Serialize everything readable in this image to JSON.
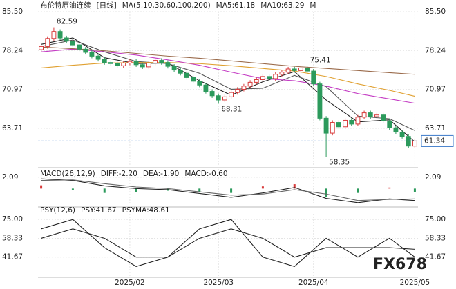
{
  "chart_data": [
    {
      "type": "candlestick",
      "grid": true,
      "up_color": "#d83a3a",
      "down_color": "#2c9a5c",
      "legend": [
        {
          "text": "布伦特原油连续",
          "color": "#222"
        },
        {
          "text": "[日线]",
          "color": "#d83a3a"
        },
        {
          "text": "MA(5,10,30,60,100,200)",
          "color": "#222"
        },
        {
          "text": "MA5:61.18",
          "color": "#222"
        },
        {
          "text": "MA10:63.29",
          "color": "#222"
        },
        {
          "text": "M",
          "color": "#c43cc4"
        }
      ],
      "xlim": [
        -0.5,
        59.5
      ],
      "xticks": [
        {
          "value": 14,
          "label": "2025/02"
        },
        {
          "value": 28,
          "label": "2025/03"
        },
        {
          "value": 43,
          "label": "2025/04"
        },
        {
          "value": 59,
          "label": "2025/05"
        }
      ],
      "ylim": [
        56.75,
        85.5
      ],
      "yticks": [
        {
          "value": 85.5,
          "label": "85.50"
        },
        78.24,
        70.97,
        63.71
      ],
      "open": [
        78.4,
        79.0,
        80.5,
        81.8,
        80.6,
        80.0,
        79.3,
        78.5,
        77.9,
        77.2,
        76.6,
        76.0,
        75.8,
        75.4,
        75.9,
        76.2,
        75.6,
        75.2,
        75.9,
        76.4,
        76.0,
        75.3,
        74.6,
        74.0,
        73.2,
        72.5,
        71.8,
        70.6,
        69.8,
        69.0,
        69.6,
        70.4,
        71.0,
        71.6,
        72.3,
        72.8,
        73.4,
        73.0,
        73.8,
        74.2,
        74.8,
        74.5,
        75.0,
        74.4,
        72.0,
        65.6,
        62.8,
        64.8,
        64.0,
        65.2,
        64.5,
        65.8,
        66.6,
        65.9,
        66.2,
        65.1,
        63.8,
        63.0,
        62.2,
        60.4
      ],
      "high": [
        79.4,
        80.9,
        82.59,
        82.2,
        81.0,
        80.4,
        79.7,
        78.9,
        78.3,
        77.6,
        77.0,
        76.4,
        76.2,
        76.3,
        76.6,
        76.6,
        76.0,
        76.3,
        76.8,
        76.8,
        76.4,
        75.7,
        75.0,
        74.4,
        73.6,
        72.9,
        72.2,
        71.0,
        70.2,
        70.0,
        70.8,
        71.4,
        72.0,
        72.7,
        73.2,
        73.8,
        73.8,
        74.2,
        74.6,
        75.2,
        75.2,
        75.3,
        75.41,
        74.8,
        72.4,
        66.0,
        65.2,
        65.2,
        65.6,
        65.6,
        66.2,
        67.0,
        67.0,
        66.6,
        66.6,
        65.5,
        64.2,
        63.4,
        62.6,
        61.8
      ],
      "low": [
        78.0,
        78.6,
        80.1,
        80.2,
        79.6,
        78.9,
        78.1,
        77.5,
        76.8,
        76.2,
        75.6,
        75.4,
        75.0,
        75.0,
        75.5,
        75.2,
        74.8,
        74.8,
        75.5,
        75.6,
        74.9,
        74.2,
        73.6,
        72.8,
        72.1,
        71.4,
        70.2,
        69.4,
        68.31,
        68.6,
        69.2,
        70.0,
        70.6,
        71.2,
        71.9,
        72.4,
        72.6,
        72.6,
        73.4,
        73.8,
        74.1,
        74.1,
        74.0,
        71.6,
        65.2,
        58.35,
        62.4,
        63.6,
        63.6,
        64.1,
        64.1,
        65.4,
        65.5,
        65.5,
        64.7,
        63.4,
        62.6,
        61.8,
        60.0,
        60.0
      ],
      "close": [
        79.0,
        80.5,
        81.8,
        80.6,
        80.0,
        79.3,
        78.5,
        77.9,
        77.2,
        76.6,
        76.0,
        75.8,
        75.4,
        75.9,
        76.2,
        75.6,
        75.2,
        75.9,
        76.4,
        76.0,
        75.3,
        74.6,
        74.0,
        73.2,
        72.5,
        71.8,
        70.6,
        69.8,
        69.0,
        69.6,
        70.4,
        71.0,
        71.6,
        72.3,
        72.8,
        73.4,
        73.0,
        73.8,
        74.2,
        74.8,
        74.5,
        75.0,
        74.4,
        72.0,
        65.6,
        62.8,
        64.8,
        64.0,
        65.2,
        64.5,
        65.8,
        66.6,
        65.9,
        66.2,
        65.1,
        63.8,
        63.0,
        62.2,
        60.4,
        61.34
      ],
      "series": [
        {
          "color": "#222222",
          "x": [
            0,
            5,
            10,
            15,
            20,
            25,
            30,
            35,
            40,
            45,
            50,
            55,
            59
          ],
          "values": [
            79.4,
            80.6,
            76.9,
            75.8,
            75.9,
            72.6,
            69.9,
            72.4,
            74.3,
            69.0,
            64.9,
            65.3,
            61.18
          ]
        },
        {
          "color": "#555555",
          "x": [
            0,
            5,
            10,
            15,
            20,
            25,
            30,
            35,
            40,
            45,
            50,
            55,
            59
          ],
          "values": [
            79.0,
            80.2,
            78.0,
            76.2,
            75.8,
            74.0,
            71.0,
            71.2,
            73.6,
            71.5,
            66.0,
            65.5,
            63.29
          ]
        },
        {
          "color": "#c43cc4",
          "x": [
            0,
            5,
            10,
            15,
            20,
            25,
            30,
            35,
            40,
            45,
            50,
            55,
            59
          ],
          "values": [
            78.0,
            78.5,
            78.0,
            77.4,
            76.5,
            75.5,
            74.2,
            73.0,
            72.6,
            71.6,
            70.2,
            69.2,
            68.4
          ]
        },
        {
          "color": "#e0a030",
          "x": [
            0,
            5,
            10,
            15,
            20,
            25,
            30,
            35,
            40,
            45,
            50,
            55,
            59
          ],
          "values": [
            75.0,
            75.5,
            75.9,
            76.0,
            76.0,
            75.8,
            75.4,
            74.9,
            74.4,
            73.4,
            72.0,
            70.8,
            69.7
          ]
        },
        {
          "color": "#9a6a4a",
          "x": [
            0,
            5,
            10,
            15,
            20,
            25,
            30,
            35,
            40,
            45,
            50,
            55,
            59
          ],
          "values": [
            78.9,
            78.6,
            78.2,
            77.7,
            77.2,
            76.8,
            76.3,
            75.8,
            75.3,
            74.9,
            74.5,
            74.1,
            73.8
          ]
        }
      ],
      "annotations": [
        {
          "x": 2,
          "value": 82.59,
          "color": "#b03030"
        },
        {
          "x": 42,
          "value": 75.41,
          "color": "#b03030"
        },
        {
          "x": 28,
          "value": 68.31,
          "color": "#2c8a50"
        },
        {
          "x": 45,
          "value": 58.35,
          "color": "#2c8a50"
        }
      ],
      "last_price": 61.34,
      "last_price_color": "#3a78c8",
      "watermark": "FX678"
    },
    {
      "type": "macd",
      "grid": true,
      "up_color": "#d83a3a",
      "down_color": "#2c9a5c",
      "legend": [
        {
          "text": "MACD(26,12,9)",
          "color": "#222"
        },
        {
          "text": "DIFF:-2.20",
          "color": "#222"
        },
        {
          "text": "DEA:-1.90",
          "color": "#222"
        },
        {
          "text": "MACD:-0.60",
          "color": "#c43cc4"
        }
      ],
      "xlim": [
        -0.5,
        59.5
      ],
      "ylim": [
        -3,
        3.6
      ],
      "yticks": [
        2.09
      ],
      "x": [
        0,
        5,
        10,
        15,
        20,
        25,
        30,
        35,
        40,
        45,
        50,
        55,
        59
      ],
      "histogram": [
        0.6,
        -0.2,
        -0.8,
        -0.6,
        -0.4,
        -0.6,
        -0.8,
        0.4,
        0.8,
        -1.6,
        -0.8,
        0.2,
        -0.6
      ],
      "series": [
        {
          "color": "#222222",
          "values": [
            1.8,
            1.5,
            0.5,
            0.0,
            -0.2,
            -0.9,
            -1.6,
            -0.8,
            0.2,
            -1.8,
            -2.6,
            -1.9,
            -2.2
          ]
        },
        {
          "color": "#666666",
          "values": [
            1.5,
            1.6,
            0.9,
            0.3,
            0.0,
            -0.6,
            -1.2,
            -1.0,
            -0.2,
            -1.0,
            -2.2,
            -2.0,
            -1.9
          ]
        }
      ]
    },
    {
      "type": "line",
      "grid": true,
      "legend": [
        {
          "text": "PSY(12,6)",
          "color": "#222"
        },
        {
          "text": "PSY:41.67",
          "color": "#222"
        },
        {
          "text": "PSYMA:48.61",
          "color": "#222"
        }
      ],
      "xlim": [
        -0.5,
        59.5
      ],
      "ylim": [
        25,
        80
      ],
      "yticks": [
        {
          "value": 75,
          "label": "75.00"
        },
        58.33,
        41.67
      ],
      "x": [
        0,
        5,
        10,
        15,
        20,
        25,
        30,
        35,
        40,
        45,
        50,
        55,
        59
      ],
      "series": [
        {
          "color": "#222222",
          "values": [
            66.67,
            75,
            50,
            33.33,
            41.67,
            66.67,
            75,
            41.67,
            33.33,
            58.33,
            41.67,
            58.33,
            41.67
          ]
        },
        {
          "color": "#222222",
          "values": [
            58.33,
            66.67,
            58.33,
            41.67,
            41.67,
            58.33,
            66.67,
            58.33,
            41.67,
            50,
            50,
            50,
            48.61
          ]
        }
      ]
    }
  ]
}
